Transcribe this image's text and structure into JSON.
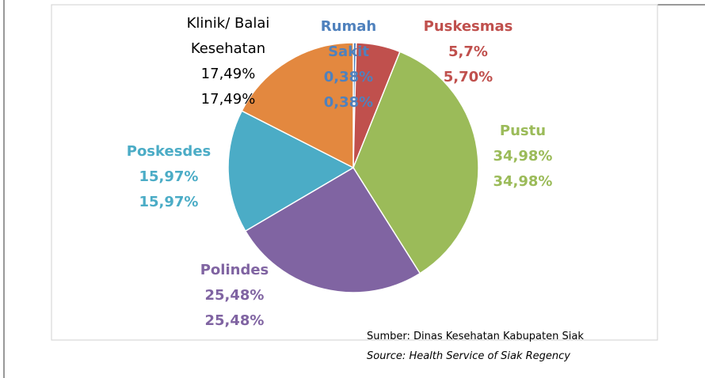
{
  "chart_data": {
    "type": "pie",
    "categories": [
      "Rumah Sakit",
      "Puskesmas",
      "Pustu",
      "Polindes",
      "Poskesdes",
      "Klinik/ Balai Kesehatan"
    ],
    "values": [
      0.38,
      5.7,
      34.98,
      25.48,
      15.97,
      17.49
    ],
    "value_labels": [
      [
        "0,38%",
        "0,38%"
      ],
      [
        "5,7%",
        "5,70%"
      ],
      [
        "34,98%",
        "34,98%"
      ],
      [
        "25,48%",
        "25,48%"
      ],
      [
        "15,97%",
        "15,97%"
      ],
      [
        "17,49%",
        "17,49%"
      ]
    ],
    "colors": [
      "#4f81bd",
      "#c0504d",
      "#9bbb59",
      "#8064a2",
      "#4bacc6",
      "#e3883f"
    ],
    "label_colors": [
      "#4f81bd",
      "#c0504d",
      "#9bbb59",
      "#8064a2",
      "#4bacc6",
      "#000000"
    ],
    "source": [
      "Sumber: Dinas Kesehatan Kabupaten Siak",
      "Source: Health Service of Siak Regency"
    ]
  }
}
